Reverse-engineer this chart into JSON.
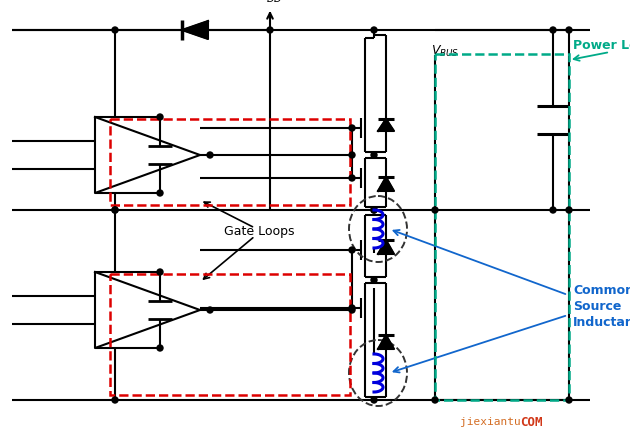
{
  "bg_color": "#ffffff",
  "line_color": "#000000",
  "red_dashed_color": "#dd0000",
  "green_dashed_color": "#00aa88",
  "blue_color": "#1166cc",
  "inductor_color": "#0000dd",
  "text_power_loop": "Power Loop",
  "text_gate_loops": "Gate Loops",
  "text_csi_line1": "Common",
  "text_csi_line2": "Source",
  "text_csi_line3": "Inductance",
  "text_watermark": "jiexiantu",
  "text_watermark2": "COM",
  "figsize": [
    6.3,
    4.4
  ],
  "dpi": 100
}
